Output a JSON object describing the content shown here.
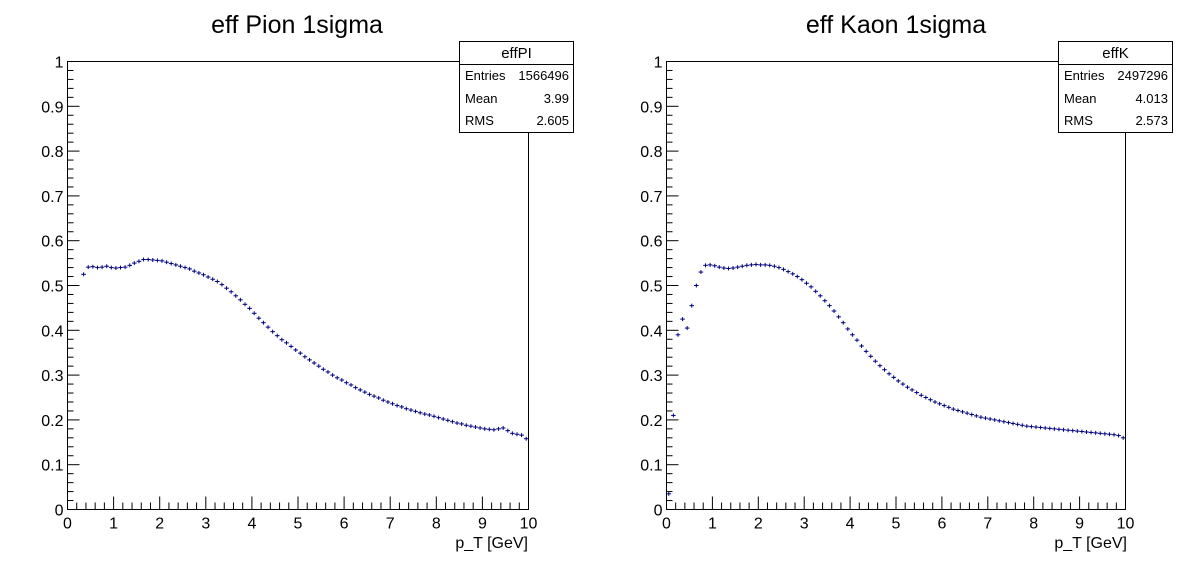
{
  "chart_data": [
    {
      "type": "histogram",
      "title": "eff Pion 1sigma",
      "xlabel": "p_T [GeV]",
      "ylabel": "",
      "xlim": [
        0,
        10
      ],
      "ylim": [
        0,
        1
      ],
      "x_ticks": [
        "0",
        "1",
        "2",
        "3",
        "4",
        "5",
        "6",
        "7",
        "8",
        "9",
        "10"
      ],
      "y_ticks": [
        "0",
        "0.1",
        "0.2",
        "0.3",
        "0.4",
        "0.5",
        "0.6",
        "0.7",
        "0.8",
        "0.9",
        "1"
      ],
      "bin_width": 0.1,
      "series": [
        {
          "color": "#000080",
          "x": [
            0.35,
            0.45,
            0.55,
            0.65,
            0.75,
            0.85,
            0.95,
            1.05,
            1.15,
            1.25,
            1.35,
            1.45,
            1.55,
            1.65,
            1.75,
            1.85,
            1.95,
            2.05,
            2.15,
            2.25,
            2.35,
            2.45,
            2.55,
            2.65,
            2.75,
            2.85,
            2.95,
            3.05,
            3.15,
            3.25,
            3.35,
            3.45,
            3.55,
            3.65,
            3.75,
            3.85,
            3.95,
            4.05,
            4.15,
            4.25,
            4.35,
            4.45,
            4.55,
            4.65,
            4.75,
            4.85,
            4.95,
            5.05,
            5.15,
            5.25,
            5.35,
            5.45,
            5.55,
            5.65,
            5.75,
            5.85,
            5.95,
            6.05,
            6.15,
            6.25,
            6.35,
            6.45,
            6.55,
            6.65,
            6.75,
            6.85,
            6.95,
            7.05,
            7.15,
            7.25,
            7.35,
            7.45,
            7.55,
            7.65,
            7.75,
            7.85,
            7.95,
            8.05,
            8.15,
            8.25,
            8.35,
            8.45,
            8.55,
            8.65,
            8.75,
            8.85,
            8.95,
            9.05,
            9.15,
            9.25,
            9.35,
            9.45,
            9.55,
            9.65,
            9.75,
            9.85,
            9.95
          ],
          "y": [
            0.525,
            0.541,
            0.542,
            0.54,
            0.541,
            0.543,
            0.54,
            0.539,
            0.54,
            0.541,
            0.545,
            0.55,
            0.554,
            0.558,
            0.558,
            0.557,
            0.556,
            0.555,
            0.552,
            0.549,
            0.546,
            0.543,
            0.54,
            0.537,
            0.532,
            0.528,
            0.524,
            0.519,
            0.514,
            0.509,
            0.502,
            0.494,
            0.486,
            0.477,
            0.468,
            0.458,
            0.449,
            0.438,
            0.427,
            0.417,
            0.407,
            0.397,
            0.388,
            0.379,
            0.372,
            0.364,
            0.356,
            0.349,
            0.341,
            0.334,
            0.327,
            0.32,
            0.313,
            0.307,
            0.3,
            0.294,
            0.289,
            0.283,
            0.278,
            0.272,
            0.267,
            0.262,
            0.257,
            0.253,
            0.249,
            0.244,
            0.24,
            0.236,
            0.232,
            0.229,
            0.225,
            0.222,
            0.219,
            0.216,
            0.213,
            0.211,
            0.208,
            0.205,
            0.202,
            0.199,
            0.196,
            0.193,
            0.191,
            0.188,
            0.186,
            0.184,
            0.182,
            0.18,
            0.179,
            0.178,
            0.18,
            0.182,
            0.176,
            0.17,
            0.168,
            0.166,
            0.158
          ]
        }
      ],
      "stats": {
        "name": "effPI",
        "entries_label": "Entries",
        "entries": "1566496",
        "mean_label": "Mean",
        "mean": "3.99",
        "rms_label": "RMS",
        "rms": "2.605"
      }
    },
    {
      "type": "histogram",
      "title": "eff Kaon 1sigma",
      "xlabel": "p_T [GeV]",
      "ylabel": "",
      "xlim": [
        0,
        10
      ],
      "ylim": [
        0,
        1
      ],
      "x_ticks": [
        "0",
        "1",
        "2",
        "3",
        "4",
        "5",
        "6",
        "7",
        "8",
        "9",
        "10"
      ],
      "y_ticks": [
        "0",
        "0.1",
        "0.2",
        "0.3",
        "0.4",
        "0.5",
        "0.6",
        "0.7",
        "0.8",
        "0.9",
        "1"
      ],
      "bin_width": 0.1,
      "series": [
        {
          "color": "#000080",
          "x": [
            0.05,
            0.15,
            0.25,
            0.35,
            0.45,
            0.55,
            0.65,
            0.75,
            0.85,
            0.95,
            1.05,
            1.15,
            1.25,
            1.35,
            1.45,
            1.55,
            1.65,
            1.75,
            1.85,
            1.95,
            2.05,
            2.15,
            2.25,
            2.35,
            2.45,
            2.55,
            2.65,
            2.75,
            2.85,
            2.95,
            3.05,
            3.15,
            3.25,
            3.35,
            3.45,
            3.55,
            3.65,
            3.75,
            3.85,
            3.95,
            4.05,
            4.15,
            4.25,
            4.35,
            4.45,
            4.55,
            4.65,
            4.75,
            4.85,
            4.95,
            5.05,
            5.15,
            5.25,
            5.35,
            5.45,
            5.55,
            5.65,
            5.75,
            5.85,
            5.95,
            6.05,
            6.15,
            6.25,
            6.35,
            6.45,
            6.55,
            6.65,
            6.75,
            6.85,
            6.95,
            7.05,
            7.15,
            7.25,
            7.35,
            7.45,
            7.55,
            7.65,
            7.75,
            7.85,
            7.95,
            8.05,
            8.15,
            8.25,
            8.35,
            8.45,
            8.55,
            8.65,
            8.75,
            8.85,
            8.95,
            9.05,
            9.15,
            9.25,
            9.35,
            9.45,
            9.55,
            9.65,
            9.75,
            9.85,
            9.95
          ],
          "y": [
            0.035,
            0.21,
            0.39,
            0.425,
            0.405,
            0.455,
            0.5,
            0.53,
            0.545,
            0.546,
            0.544,
            0.541,
            0.539,
            0.538,
            0.539,
            0.541,
            0.543,
            0.545,
            0.546,
            0.547,
            0.546,
            0.546,
            0.545,
            0.543,
            0.54,
            0.536,
            0.531,
            0.526,
            0.52,
            0.513,
            0.505,
            0.497,
            0.487,
            0.477,
            0.466,
            0.455,
            0.443,
            0.43,
            0.417,
            0.403,
            0.39,
            0.378,
            0.365,
            0.353,
            0.342,
            0.331,
            0.321,
            0.312,
            0.303,
            0.295,
            0.287,
            0.28,
            0.273,
            0.267,
            0.261,
            0.255,
            0.25,
            0.245,
            0.24,
            0.236,
            0.232,
            0.228,
            0.224,
            0.221,
            0.218,
            0.215,
            0.212,
            0.209,
            0.206,
            0.204,
            0.202,
            0.2,
            0.198,
            0.196,
            0.194,
            0.192,
            0.19,
            0.188,
            0.186,
            0.185,
            0.184,
            0.183,
            0.182,
            0.181,
            0.18,
            0.179,
            0.178,
            0.177,
            0.176,
            0.175,
            0.174,
            0.173,
            0.172,
            0.171,
            0.17,
            0.169,
            0.168,
            0.167,
            0.165,
            0.16
          ]
        }
      ],
      "stats": {
        "name": "effK",
        "entries_label": "Entries",
        "entries": "2497296",
        "mean_label": "Mean",
        "mean": "4.013",
        "rms_label": "RMS",
        "rms": "2.573"
      }
    }
  ]
}
